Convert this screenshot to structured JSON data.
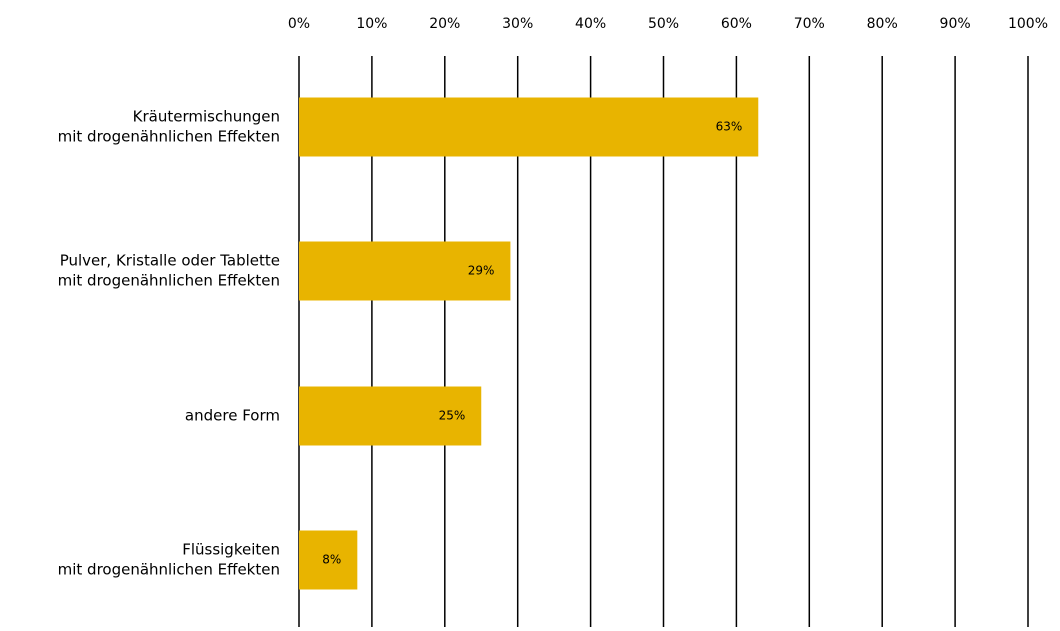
{
  "chart_data": {
    "type": "bar",
    "orientation": "horizontal",
    "title": "",
    "xlabel": "",
    "ylabel": "",
    "xlim": [
      0,
      100
    ],
    "x_ticks": [
      "0%",
      "10%",
      "20%",
      "30%",
      "40%",
      "50%",
      "60%",
      "70%",
      "80%",
      "90%",
      "100%"
    ],
    "x_axis_position": "top",
    "grid": true,
    "legend": "none",
    "bar_color": "#E8B400",
    "categories": [
      [
        "Kräutermischungen",
        "mit drogenähnlichen Effekten"
      ],
      [
        "Pulver, Kristalle oder Tablette",
        "mit drogenähnlichen Effekten"
      ],
      [
        "andere Form"
      ],
      [
        "Flüssigkeiten",
        "mit drogenähnlichen Effekten"
      ]
    ],
    "values": [
      63,
      29,
      25,
      8
    ],
    "data_labels": [
      "63%",
      "29%",
      "25%",
      "8%"
    ]
  }
}
